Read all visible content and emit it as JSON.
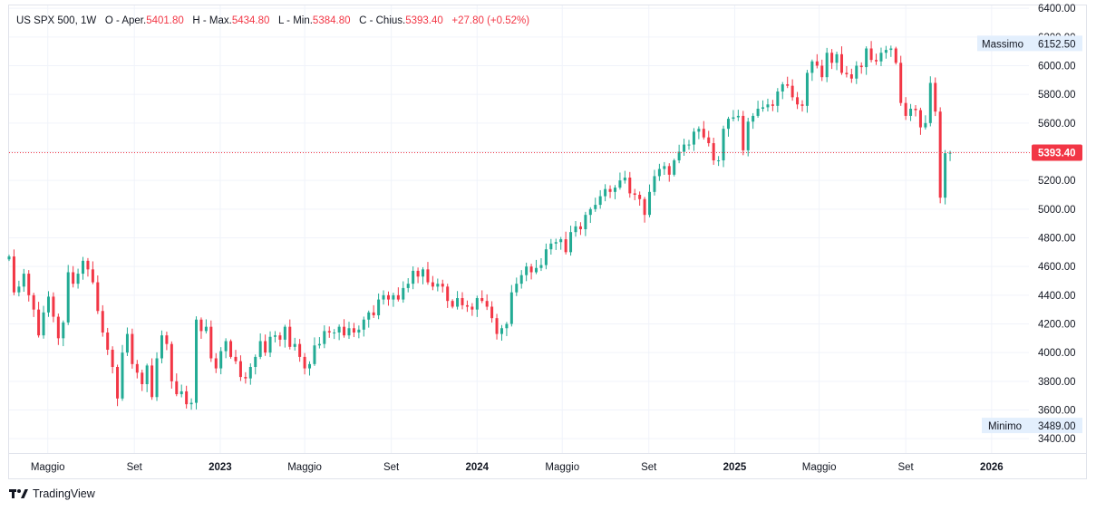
{
  "legend": {
    "symbol": "US SPX 500, 1W",
    "open_label": "O - Aper.",
    "open_value": "5401.80",
    "high_label": "H - Max.",
    "high_value": "5434.80",
    "low_label": "L - Min.",
    "low_value": "5384.80",
    "close_label": "C - Chius.",
    "close_value": "5393.40",
    "change": "+27.80 (+0.52%)"
  },
  "colors": {
    "up": "#22ab94",
    "down": "#f23645",
    "grid": "#f0f3fa",
    "axis_text": "#131722",
    "price_line": "#f23645"
  },
  "footer": {
    "brand": "TradingView",
    "logo_icon": "tradingview-logo-icon"
  },
  "chart_data": {
    "type": "candlestick",
    "title": "US SPX 500, 1W",
    "ylim": [
      3300,
      6420
    ],
    "y_ticks": [
      "6400.00",
      "6200.00",
      "6000.00",
      "5800.00",
      "5600.00",
      "5400.00",
      "5200.00",
      "5000.00",
      "4800.00",
      "4600.00",
      "4400.00",
      "4200.00",
      "4000.00",
      "3800.00",
      "3600.00",
      "3400.00"
    ],
    "x_ticks": [
      {
        "label": "Maggio",
        "date": "2022-05-01",
        "bold": false
      },
      {
        "label": "Set",
        "date": "2022-09-01",
        "bold": false
      },
      {
        "label": "2023",
        "date": "2023-01-01",
        "bold": true
      },
      {
        "label": "Maggio",
        "date": "2023-05-01",
        "bold": false
      },
      {
        "label": "Set",
        "date": "2023-09-01",
        "bold": false
      },
      {
        "label": "2024",
        "date": "2024-01-01",
        "bold": true
      },
      {
        "label": "Maggio",
        "date": "2024-05-01",
        "bold": false
      },
      {
        "label": "Set",
        "date": "2024-09-01",
        "bold": false
      },
      {
        "label": "2025",
        "date": "2025-01-01",
        "bold": true
      },
      {
        "label": "Maggio",
        "date": "2025-05-01",
        "bold": false
      },
      {
        "label": "Set",
        "date": "2025-09-01",
        "bold": false
      },
      {
        "label": "2026",
        "date": "2026-01-01",
        "bold": true
      }
    ],
    "x_range": [
      "2022-03-07",
      "2026-02-23"
    ],
    "last_price": {
      "value": 5393.4,
      "label": "5393.40"
    },
    "high_marker": {
      "label": "Massimo",
      "value": "6152.50"
    },
    "low_marker": {
      "label": "Minimo",
      "value": "3489.00"
    },
    "closes": [
      4670,
      4420,
      4460,
      4550,
      4400,
      4300,
      4120,
      4280,
      4390,
      4250,
      4100,
      4210,
      4560,
      4480,
      4550,
      4640,
      4580,
      4490,
      4290,
      4140,
      4020,
      3900,
      3680,
      4000,
      4130,
      3920,
      3860,
      3780,
      3910,
      3690,
      3960,
      4120,
      4060,
      3800,
      3710,
      3730,
      3640,
      3650,
      4230,
      4150,
      4180,
      3960,
      3890,
      4010,
      4080,
      3970,
      3940,
      3830,
      3820,
      3900,
      3970,
      4080,
      4000,
      4110,
      4120,
      4090,
      4180,
      4040,
      4060,
      3970,
      3890,
      3920,
      4050,
      4060,
      4150,
      4140,
      4140,
      4180,
      4120,
      4170,
      4140,
      4160,
      4230,
      4280,
      4260,
      4370,
      4400,
      4370,
      4400,
      4370,
      4450,
      4480,
      4570,
      4530,
      4580,
      4490,
      4460,
      4480,
      4460,
      4360,
      4320,
      4380,
      4330,
      4320,
      4300,
      4380,
      4360,
      4320,
      4240,
      4130,
      4170,
      4200,
      4420,
      4480,
      4540,
      4600,
      4560,
      4590,
      4610,
      4720,
      4760,
      4770,
      4790,
      4700,
      4840,
      4880,
      4860,
      4960,
      5000,
      5030,
      5090,
      5140,
      5120,
      5150,
      5200,
      5220,
      5110,
      5100,
      5070,
      4960,
      5120,
      5230,
      5280,
      5300,
      5240,
      5340,
      5400,
      5450,
      5450,
      5540,
      5560,
      5500,
      5460,
      5340,
      5340,
      5560,
      5630,
      5640,
      5650,
      5410,
      5610,
      5650,
      5700,
      5710,
      5730,
      5720,
      5820,
      5870,
      5860,
      5780,
      5730,
      5720,
      5950,
      6030,
      6000,
      5920,
      6090,
      6020,
      6080,
      5950,
      5940,
      5910,
      6000,
      5990,
      6120,
      6040,
      6030,
      6090,
      6110,
      6120,
      6020,
      5740,
      5650,
      5700,
      5690,
      5570,
      5600,
      5880,
      5680,
      5080,
      5390,
      5393
    ]
  }
}
